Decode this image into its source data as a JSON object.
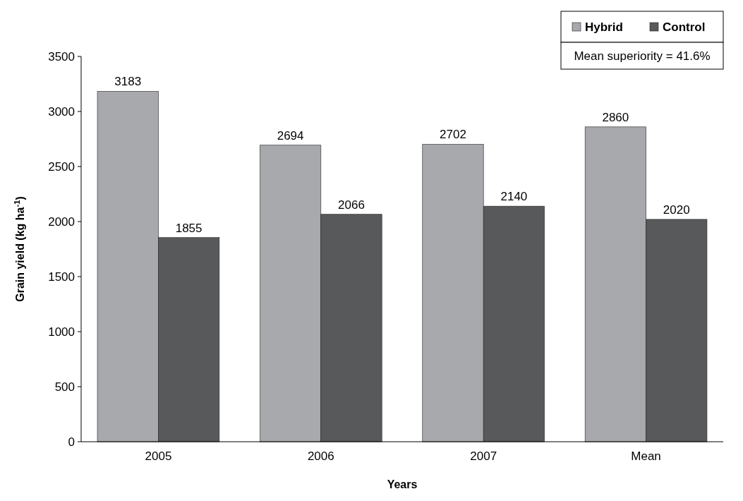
{
  "chart_data": {
    "type": "bar",
    "xlabel": "Years",
    "ylabel": "Grain yield (kg ha$^{-1}$)",
    "categories": [
      "2005",
      "2006",
      "2007",
      "Mean"
    ],
    "series": [
      {
        "name": "Hybrid",
        "color": "#a7a9ac",
        "values": [
          3183,
          2694,
          2702,
          2860
        ]
      },
      {
        "name": "Control",
        "color": "#58595b",
        "values": [
          1855,
          2066,
          2140,
          2020
        ]
      }
    ],
    "ylim": [
      0,
      3500
    ],
    "yticks": [
      0,
      500,
      1000,
      1500,
      2000,
      2500,
      3000,
      3500
    ],
    "data_labels": true,
    "legend": "top right",
    "grid": false,
    "annotations": [
      "Mean superiority = 41.6%"
    ]
  }
}
